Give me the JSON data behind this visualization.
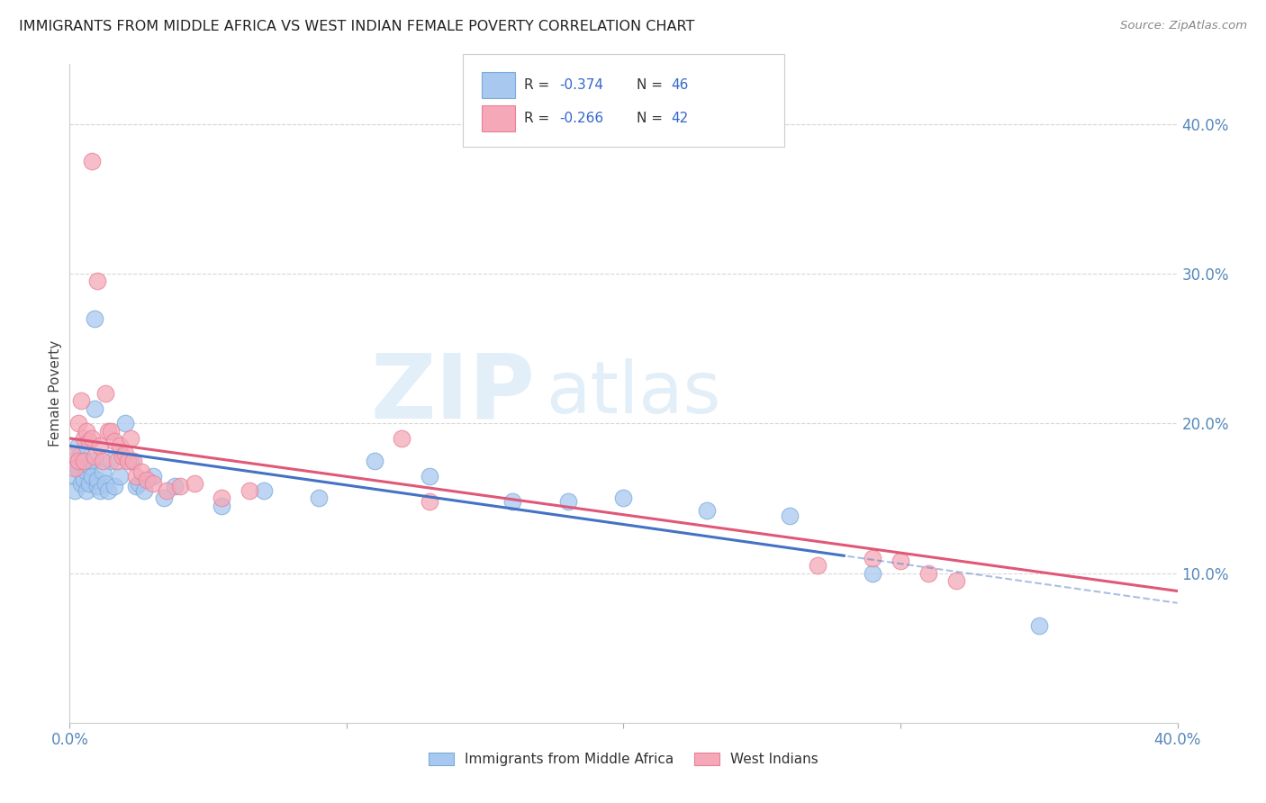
{
  "title": "IMMIGRANTS FROM MIDDLE AFRICA VS WEST INDIAN FEMALE POVERTY CORRELATION CHART",
  "source": "Source: ZipAtlas.com",
  "ylabel": "Female Poverty",
  "xlim": [
    0.0,
    0.4
  ],
  "ylim": [
    0.0,
    0.44
  ],
  "x_ticks": [
    0.0,
    0.1,
    0.2,
    0.3,
    0.4
  ],
  "x_tick_labels_show": [
    "0.0%",
    "",
    "",
    "",
    "40.0%"
  ],
  "y_ticks_right": [
    0.1,
    0.2,
    0.3,
    0.4
  ],
  "y_tick_labels_right": [
    "10.0%",
    "20.0%",
    "30.0%",
    "40.0%"
  ],
  "blue_color": "#a8c8f0",
  "pink_color": "#f4a8b8",
  "blue_edge_color": "#7aaad8",
  "pink_edge_color": "#e88098",
  "blue_line_color": "#4472c4",
  "pink_line_color": "#e05878",
  "blue_R": "-0.374",
  "blue_N": "46",
  "pink_R": "-0.266",
  "pink_N": "42",
  "legend_label_blue": "Immigrants from Middle Africa",
  "legend_label_pink": "West Indians",
  "watermark": "ZIPatlas",
  "background_color": "#ffffff",
  "grid_color": "#d8d8d8",
  "blue_scatter_x": [
    0.001,
    0.002,
    0.002,
    0.003,
    0.003,
    0.004,
    0.004,
    0.005,
    0.005,
    0.006,
    0.006,
    0.007,
    0.007,
    0.008,
    0.008,
    0.009,
    0.009,
    0.01,
    0.01,
    0.011,
    0.012,
    0.013,
    0.014,
    0.015,
    0.016,
    0.018,
    0.02,
    0.022,
    0.024,
    0.025,
    0.027,
    0.03,
    0.034,
    0.038,
    0.055,
    0.07,
    0.09,
    0.11,
    0.13,
    0.16,
    0.18,
    0.2,
    0.23,
    0.26,
    0.29,
    0.35
  ],
  "blue_scatter_y": [
    0.175,
    0.165,
    0.155,
    0.185,
    0.17,
    0.18,
    0.16,
    0.175,
    0.162,
    0.168,
    0.155,
    0.172,
    0.16,
    0.175,
    0.165,
    0.27,
    0.21,
    0.158,
    0.162,
    0.155,
    0.168,
    0.16,
    0.155,
    0.175,
    0.158,
    0.165,
    0.2,
    0.175,
    0.158,
    0.16,
    0.155,
    0.165,
    0.15,
    0.158,
    0.145,
    0.155,
    0.15,
    0.175,
    0.165,
    0.148,
    0.148,
    0.15,
    0.142,
    0.138,
    0.1,
    0.065
  ],
  "pink_scatter_x": [
    0.001,
    0.002,
    0.003,
    0.003,
    0.004,
    0.005,
    0.005,
    0.006,
    0.007,
    0.008,
    0.008,
    0.009,
    0.01,
    0.011,
    0.012,
    0.013,
    0.014,
    0.015,
    0.016,
    0.017,
    0.018,
    0.019,
    0.02,
    0.021,
    0.022,
    0.023,
    0.024,
    0.026,
    0.028,
    0.03,
    0.035,
    0.04,
    0.045,
    0.055,
    0.065,
    0.12,
    0.13,
    0.27,
    0.29,
    0.3,
    0.31,
    0.32
  ],
  "pink_scatter_y": [
    0.18,
    0.17,
    0.175,
    0.2,
    0.215,
    0.19,
    0.175,
    0.195,
    0.188,
    0.19,
    0.375,
    0.178,
    0.295,
    0.185,
    0.175,
    0.22,
    0.195,
    0.195,
    0.188,
    0.175,
    0.185,
    0.178,
    0.18,
    0.175,
    0.19,
    0.175,
    0.165,
    0.168,
    0.162,
    0.16,
    0.155,
    0.158,
    0.16,
    0.15,
    0.155,
    0.19,
    0.148,
    0.105,
    0.11,
    0.108,
    0.1,
    0.095
  ],
  "blue_trend_start_x": 0.0,
  "blue_trend_end_x": 0.4,
  "blue_trend_start_y": 0.185,
  "blue_trend_end_y": 0.08,
  "blue_trend_solid_end": 0.28,
  "pink_trend_start_x": 0.0,
  "pink_trend_end_x": 0.4,
  "pink_trend_start_y": 0.19,
  "pink_trend_end_y": 0.088
}
